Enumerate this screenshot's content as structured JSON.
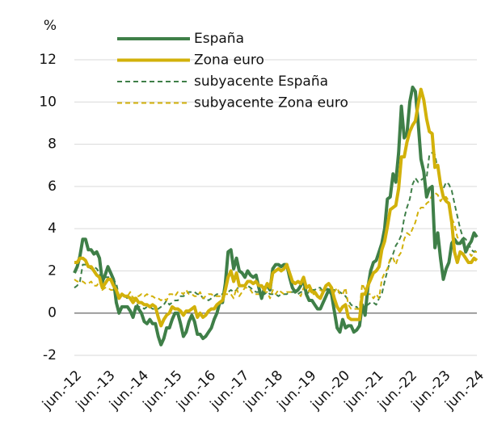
{
  "chart_data": {
    "type": "line",
    "ylabel": "%",
    "categories": [
      "jun.-12",
      null,
      null,
      null,
      null,
      null,
      null,
      null,
      null,
      null,
      null,
      null,
      "jun.-13",
      null,
      null,
      null,
      null,
      null,
      null,
      null,
      null,
      null,
      null,
      null,
      "jun.-14",
      null,
      null,
      null,
      null,
      null,
      null,
      null,
      null,
      null,
      null,
      null,
      "jun.-15",
      null,
      null,
      null,
      null,
      null,
      null,
      null,
      null,
      null,
      null,
      null,
      "jun.-16",
      null,
      null,
      null,
      null,
      null,
      null,
      null,
      null,
      null,
      null,
      null,
      "jun.-17",
      null,
      null,
      null,
      null,
      null,
      null,
      null,
      null,
      null,
      null,
      null,
      "jun.-18",
      null,
      null,
      null,
      null,
      null,
      null,
      null,
      null,
      null,
      null,
      null,
      "jun.-19",
      null,
      null,
      null,
      null,
      null,
      null,
      null,
      null,
      null,
      null,
      null,
      "jun.-20",
      null,
      null,
      null,
      null,
      null,
      null,
      null,
      null,
      null,
      null,
      null,
      "jun.-21",
      null,
      null,
      null,
      null,
      null,
      null,
      null,
      null,
      null,
      null,
      null,
      "jun.-22",
      null,
      null,
      null,
      null,
      null,
      null,
      null,
      null,
      null,
      null,
      null,
      "jun.-23",
      null,
      null,
      null,
      null,
      null,
      null,
      null,
      null,
      null,
      null,
      null,
      "jun.-24"
    ],
    "series": [
      {
        "name": "España",
        "color": "#3f7f48",
        "style": "solid",
        "values": [
          1.9,
          2.2,
          2.7,
          3.5,
          3.5,
          3.0,
          3.0,
          2.8,
          2.9,
          2.6,
          1.5,
          1.8,
          2.2,
          1.9,
          1.6,
          0.5,
          0.0,
          0.3,
          0.3,
          0.3,
          0.1,
          -0.2,
          0.3,
          0.2,
          0.0,
          -0.4,
          -0.5,
          -0.3,
          -0.5,
          -0.5,
          -1.1,
          -1.5,
          -1.2,
          -0.7,
          -0.7,
          -0.3,
          0.0,
          0.0,
          -0.5,
          -1.1,
          -0.9,
          -0.4,
          -0.1,
          -0.4,
          -1.0,
          -1.0,
          -1.2,
          -1.1,
          -0.9,
          -0.7,
          -0.3,
          0.0,
          0.5,
          0.5,
          1.4,
          2.9,
          3.0,
          2.1,
          2.6,
          2.0,
          1.9,
          1.7,
          2.0,
          1.8,
          1.7,
          1.8,
          1.2,
          0.7,
          1.2,
          1.3,
          1.1,
          2.1,
          2.3,
          2.3,
          2.2,
          2.3,
          2.3,
          1.7,
          1.2,
          1.0,
          1.1,
          1.3,
          1.6,
          0.9,
          0.6,
          0.6,
          0.4,
          0.2,
          0.2,
          0.5,
          0.8,
          1.1,
          0.9,
          0.1,
          -0.7,
          -0.9,
          -0.3,
          -0.7,
          -0.6,
          -0.6,
          -0.9,
          -0.8,
          -0.6,
          0.4,
          -0.1,
          1.2,
          2.0,
          2.4,
          2.5,
          2.9,
          3.3,
          4.0,
          5.4,
          5.5,
          6.6,
          6.2,
          7.6,
          9.8,
          8.3,
          8.5,
          10.0,
          10.7,
          10.5,
          9.0,
          7.3,
          6.7,
          5.5,
          5.9,
          6.0,
          3.1,
          3.8,
          2.6,
          1.6,
          2.1,
          2.4,
          3.3,
          3.5,
          3.3,
          3.3,
          3.5,
          2.9,
          3.2,
          3.4,
          3.8,
          3.6
        ]
      },
      {
        "name": "Zona euro",
        "color": "#d2b10a",
        "style": "solid",
        "values": [
          2.4,
          2.4,
          2.6,
          2.6,
          2.5,
          2.2,
          2.2,
          2.0,
          1.8,
          1.7,
          1.2,
          1.4,
          1.6,
          1.6,
          1.3,
          1.1,
          0.7,
          0.9,
          0.8,
          0.8,
          0.7,
          0.5,
          0.7,
          0.5,
          0.5,
          0.4,
          0.4,
          0.3,
          0.4,
          0.3,
          -0.2,
          -0.6,
          -0.3,
          -0.1,
          0.0,
          0.3,
          0.2,
          0.2,
          0.1,
          -0.1,
          0.1,
          0.1,
          0.2,
          0.3,
          -0.2,
          0.0,
          -0.2,
          -0.1,
          0.1,
          0.2,
          0.2,
          0.4,
          0.5,
          0.6,
          1.1,
          1.7,
          2.0,
          1.5,
          1.9,
          1.3,
          1.3,
          1.3,
          1.5,
          1.5,
          1.4,
          1.5,
          1.3,
          1.3,
          1.1,
          1.4,
          1.2,
          1.9,
          2.0,
          2.1,
          2.0,
          2.1,
          2.3,
          1.9,
          1.5,
          1.4,
          1.5,
          1.4,
          1.7,
          1.2,
          1.3,
          1.0,
          1.0,
          0.8,
          0.7,
          1.0,
          1.3,
          1.4,
          1.2,
          0.7,
          0.3,
          0.1,
          0.3,
          0.4,
          -0.2,
          -0.3,
          -0.3,
          -0.3,
          -0.3,
          0.9,
          0.9,
          1.3,
          1.6,
          1.9,
          2.0,
          2.2,
          3.0,
          3.4,
          4.1,
          4.9,
          5.0,
          5.1,
          5.9,
          7.4,
          7.4,
          8.1,
          8.6,
          8.9,
          9.1,
          9.9,
          10.6,
          10.1,
          9.2,
          8.6,
          8.5,
          6.9,
          7.0,
          6.1,
          5.5,
          5.3,
          5.2,
          4.3,
          2.9,
          2.4,
          2.9,
          2.8,
          2.6,
          2.4,
          2.4,
          2.6,
          2.5
        ]
      },
      {
        "name": "subyacente España",
        "color": "#3f7f48",
        "style": "dashed",
        "values": [
          1.2,
          1.3,
          1.5,
          2.3,
          2.3,
          2.2,
          2.1,
          2.2,
          2.1,
          1.9,
          1.4,
          1.7,
          1.7,
          1.7,
          1.6,
          1.4,
          0.8,
          0.8,
          0.8,
          0.7,
          0.6,
          0.6,
          0.5,
          0.3,
          0.3,
          0.2,
          0.3,
          0.3,
          0.2,
          0.2,
          0.2,
          0.3,
          0.4,
          0.6,
          0.4,
          0.5,
          0.6,
          0.6,
          0.8,
          0.8,
          0.9,
          1.0,
          1.0,
          1.0,
          0.9,
          0.9,
          0.7,
          0.7,
          0.6,
          0.7,
          0.8,
          0.9,
          0.9,
          0.9,
          0.9,
          1.0,
          1.1,
          1.0,
          1.1,
          1.3,
          1.3,
          1.3,
          1.3,
          1.2,
          1.1,
          1.0,
          1.0,
          0.9,
          0.9,
          1.0,
          0.9,
          0.9,
          0.9,
          0.8,
          0.9,
          0.9,
          0.9,
          1.0,
          1.0,
          1.0,
          0.9,
          1.0,
          1.0,
          0.9,
          1.0,
          1.1,
          1.1,
          1.2,
          1.2,
          1.0,
          1.1,
          1.2,
          1.1,
          1.1,
          1.0,
          1.0,
          0.9,
          0.8,
          0.6,
          0.4,
          0.3,
          0.3,
          0.1,
          0.3,
          0.3,
          0.4,
          0.5,
          0.5,
          0.4,
          0.7,
          0.9,
          1.5,
          2.0,
          2.5,
          2.8,
          3.2,
          3.4,
          3.7,
          4.5,
          5.0,
          5.4,
          6.1,
          6.4,
          6.2,
          6.3,
          6.4,
          6.4,
          7.5,
          7.6,
          7.5,
          6.8,
          6.1,
          5.9,
          6.2,
          6.1,
          5.8,
          5.2,
          4.6,
          4.0,
          3.6,
          3.5,
          3.3,
          3.0,
          2.9,
          3.0
        ]
      },
      {
        "name": "subyacente Zona euro",
        "color": "#d2b10a",
        "style": "dashed",
        "values": [
          1.6,
          1.5,
          1.5,
          1.5,
          1.4,
          1.4,
          1.5,
          1.3,
          1.3,
          1.5,
          1.1,
          1.2,
          1.2,
          1.1,
          1.1,
          1.0,
          0.8,
          0.9,
          0.8,
          0.8,
          1.0,
          0.7,
          0.8,
          0.8,
          0.9,
          0.8,
          0.9,
          0.8,
          0.8,
          0.7,
          0.7,
          0.6,
          0.7,
          0.6,
          0.9,
          0.9,
          0.8,
          1.0,
          1.0,
          0.9,
          1.1,
          0.9,
          0.9,
          0.8,
          0.8,
          1.0,
          0.7,
          0.8,
          0.9,
          0.9,
          0.8,
          0.8,
          0.8,
          0.8,
          0.9,
          0.9,
          0.9,
          0.7,
          1.2,
          0.8,
          1.0,
          1.2,
          1.2,
          1.1,
          0.9,
          0.9,
          0.9,
          1.0,
          1.0,
          1.0,
          0.7,
          1.1,
          0.9,
          1.1,
          1.0,
          0.9,
          1.0,
          1.0,
          1.0,
          1.1,
          1.0,
          0.8,
          1.2,
          0.8,
          1.1,
          0.9,
          0.9,
          1.0,
          1.1,
          1.0,
          1.3,
          1.1,
          1.2,
          1.0,
          1.2,
          0.9,
          0.9,
          1.2,
          0.4,
          0.2,
          0.2,
          0.2,
          0.2,
          1.4,
          1.1,
          0.9,
          0.9,
          0.7,
          0.9,
          0.7,
          1.6,
          1.9,
          2.1,
          2.6,
          2.6,
          2.3,
          2.7,
          2.9,
          3.5,
          3.8,
          3.7,
          4.0,
          4.3,
          4.8,
          5.0,
          5.0,
          5.2,
          5.3,
          5.6,
          5.7,
          5.6,
          5.3,
          5.5,
          5.5,
          5.3,
          4.5,
          4.2,
          3.6,
          3.4,
          3.3,
          3.1,
          2.9,
          2.7,
          2.9,
          2.9
        ]
      }
    ],
    "ylim": [
      -2,
      12
    ],
    "yticks": [
      -2,
      0,
      2,
      4,
      6,
      8,
      10,
      12
    ],
    "grid": true
  }
}
